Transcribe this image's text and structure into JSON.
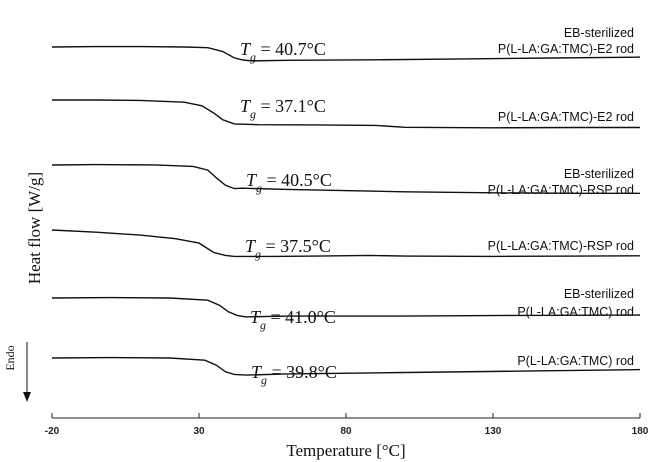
{
  "chart_data": {
    "type": "line",
    "xlabel": "Temperature [°C]",
    "ylabel": "Heat flow [W/g]",
    "xlim": [
      -20,
      180
    ],
    "xticks": [
      "-20",
      "30",
      "80",
      "130",
      "180"
    ],
    "direction_label": "Endo",
    "series": [
      {
        "label_lines": [
          "EB-sterilized",
          "P(L-LA:GA:TMC)-E2 rod"
        ],
        "tg_symbol": "T",
        "tg_sub": "g",
        "tg_value": " = 40.7°C",
        "color": "#111111",
        "points": [
          [
            -20,
            0.0
          ],
          [
            -5,
            0.25
          ],
          [
            10,
            0.25
          ],
          [
            25,
            0.0
          ],
          [
            33,
            -0.5
          ],
          [
            38,
            -3.0
          ],
          [
            42,
            -7.5
          ],
          [
            45,
            -9.0
          ],
          [
            48,
            -9.6
          ],
          [
            60,
            -9.2
          ],
          [
            90,
            -8.8
          ],
          [
            120,
            -8.2
          ],
          [
            150,
            -7.6
          ],
          [
            180,
            -7.0
          ]
        ]
      },
      {
        "label_lines": [
          "P(L-LA:GA:TMC)-E2 rod"
        ],
        "tg_symbol": "T",
        "tg_sub": "g",
        "tg_value": " = 37.1°C",
        "color": "#111111",
        "points": [
          [
            -20,
            0.0
          ],
          [
            -5,
            0.0
          ],
          [
            10,
            -0.3
          ],
          [
            25,
            -1.5
          ],
          [
            31,
            -4.0
          ],
          [
            35,
            -9.0
          ],
          [
            38,
            -13.5
          ],
          [
            42,
            -16.5
          ],
          [
            50,
            -17.0
          ],
          [
            70,
            -17.2
          ],
          [
            90,
            -17.5
          ],
          [
            100,
            -18.8
          ],
          [
            130,
            -19.2
          ],
          [
            160,
            -19.0
          ],
          [
            180,
            -19.0
          ]
        ]
      },
      {
        "label_lines": [
          "EB-sterilized",
          "P(L-LA:GA:TMC)-RSP rod"
        ],
        "tg_symbol": "T",
        "tg_sub": "g",
        "tg_value": " = 40.5°C",
        "color": "#111111",
        "points": [
          [
            -20,
            0.0
          ],
          [
            -5,
            0.3
          ],
          [
            15,
            0.1
          ],
          [
            28,
            -1.0
          ],
          [
            33,
            -3.5
          ],
          [
            36,
            -9.0
          ],
          [
            39,
            -14.0
          ],
          [
            42,
            -16.3
          ],
          [
            45,
            -16.0
          ],
          [
            60,
            -16.8
          ],
          [
            100,
            -18.5
          ],
          [
            130,
            -19.2
          ],
          [
            160,
            -19.5
          ],
          [
            180,
            -19.5
          ]
        ]
      },
      {
        "label_lines": [
          "P(L-LA:GA:TMC)-RSP rod"
        ],
        "tg_symbol": "T",
        "tg_sub": "g",
        "tg_value": " = 37.5°C",
        "color": "#111111",
        "points": [
          [
            -20,
            0.0
          ],
          [
            -5,
            -1.5
          ],
          [
            10,
            -3.5
          ],
          [
            22,
            -6.0
          ],
          [
            30,
            -9.0
          ],
          [
            35,
            -15.5
          ],
          [
            39,
            -17.5
          ],
          [
            42,
            -18.2
          ],
          [
            55,
            -18.2
          ],
          [
            70,
            -18.0
          ],
          [
            88,
            -17.5
          ],
          [
            100,
            -18.0
          ],
          [
            130,
            -18.2
          ],
          [
            160,
            -18.0
          ],
          [
            180,
            -17.8
          ]
        ]
      },
      {
        "label_lines": [
          "EB-sterilized",
          "P(L-LA:GA:TMC) rod"
        ],
        "tg_symbol": "T",
        "tg_sub": "g",
        "tg_value": " = 41.0°C",
        "color": "#111111",
        "points": [
          [
            -20,
            0.0
          ],
          [
            0,
            0.3
          ],
          [
            20,
            0.0
          ],
          [
            33,
            -1.5
          ],
          [
            37,
            -5.0
          ],
          [
            40,
            -9.5
          ],
          [
            43,
            -12.0
          ],
          [
            46,
            -13.0
          ],
          [
            60,
            -12.5
          ],
          [
            100,
            -12.5
          ],
          [
            140,
            -12.0
          ],
          [
            180,
            -11.7
          ]
        ]
      },
      {
        "label_lines": [
          "P(L-LA:GA:TMC) rod"
        ],
        "tg_symbol": "T",
        "tg_sub": "g",
        "tg_value": " = 39.8°C",
        "color": "#111111",
        "points": [
          [
            -20,
            0.0
          ],
          [
            0,
            0.3
          ],
          [
            20,
            0.0
          ],
          [
            32,
            -1.5
          ],
          [
            36,
            -5.0
          ],
          [
            39,
            -9.5
          ],
          [
            42,
            -11.3
          ],
          [
            46,
            -11.8
          ],
          [
            60,
            -11.0
          ],
          [
            100,
            -10.0
          ],
          [
            140,
            -9.0
          ],
          [
            180,
            -8.0
          ]
        ]
      }
    ]
  }
}
